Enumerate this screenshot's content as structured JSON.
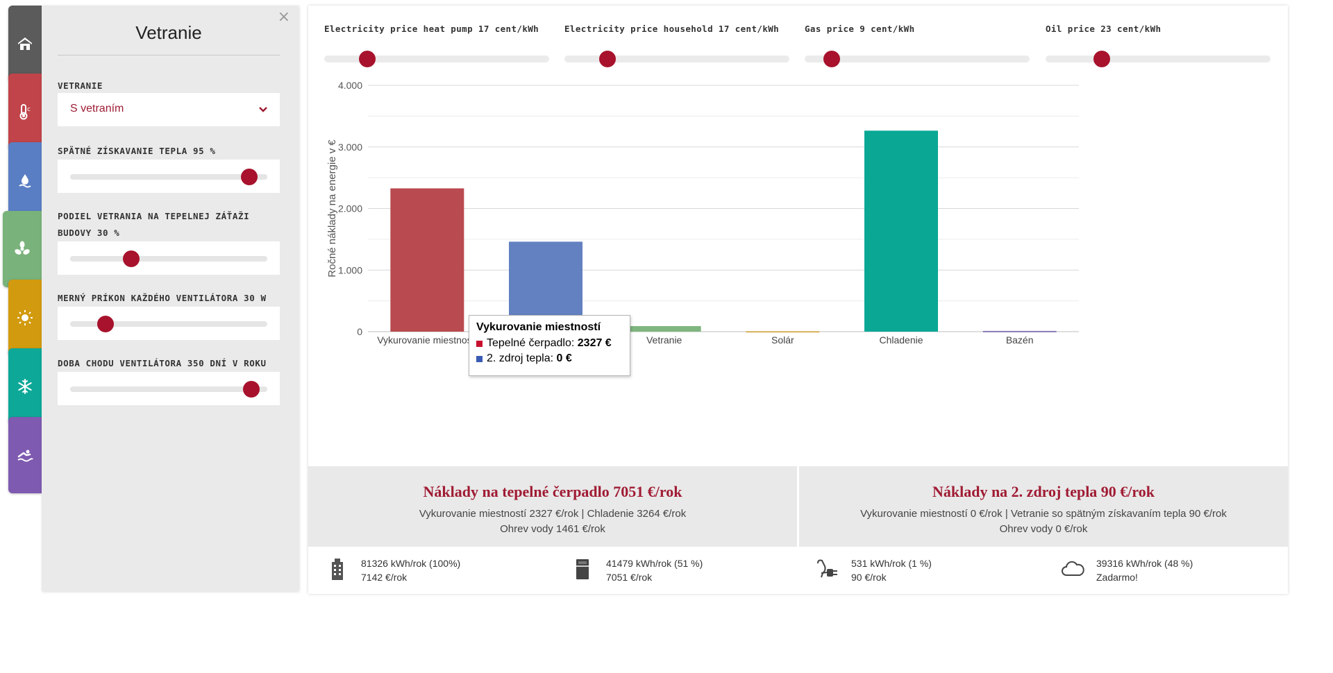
{
  "colors": {
    "accent": "#a8122c",
    "tab_building": "#5b5b5b",
    "tab_heating": "#c0444a",
    "tab_water": "#5a7ec4",
    "tab_ventilation": "#79b27a",
    "tab_solar": "#d29a0e",
    "tab_cooling": "#0ea898",
    "tab_pool": "#7e5ab0"
  },
  "tabs": [
    {
      "icon": "house-icon"
    },
    {
      "icon": "thermometer-icon"
    },
    {
      "icon": "water-drop-icon"
    },
    {
      "icon": "fan-icon"
    },
    {
      "icon": "sun-icon"
    },
    {
      "icon": "snowflake-icon"
    },
    {
      "icon": "swimmer-icon"
    }
  ],
  "panel": {
    "close": "×",
    "title": "Vetranie",
    "ventilation_label": "VETRANIE",
    "ventilation_value": "S vetraním",
    "heat_recovery_label": "SPÄTNÉ ZÍSKAVANIE TEPLA 95 %",
    "heat_recovery_level": 0.91,
    "ventilation_share_label": "PODIEL VETRANIA NA TEPELNEJ ZÁŤAŽI BUDOVY 30 %",
    "ventilation_share_level": 0.31,
    "fan_power_label": "MERNÝ PRÍKON KAŽDÉHO VENTILÁTORA 30 W",
    "fan_power_level": 0.18,
    "fan_runtime_label": "DOBA CHODU VENTILÁTORA 350 DNÍ V ROKU",
    "fan_runtime_level": 0.92
  },
  "prices": [
    {
      "label": "Electricity price heat pump 17 cent/kWh",
      "level": 0.19
    },
    {
      "label": "Electricity price household 17 cent/kWh",
      "level": 0.19
    },
    {
      "label": "Gas price 9 cent/kWh",
      "level": 0.12
    },
    {
      "label": "Oil price 23 cent/kWh",
      "level": 0.25
    }
  ],
  "chart_data": {
    "type": "bar",
    "ylabel": "Ročné náklady na energie v €",
    "ylim": [
      0,
      4000
    ],
    "yticks": [
      "0",
      "1.000",
      "2.000",
      "3.000",
      "4.000"
    ],
    "ytick_values": [
      0,
      1000,
      2000,
      3000,
      4000
    ],
    "minor_gridlines": true,
    "categories": [
      "Vykurovanie miestností",
      "Ohrev vody",
      "Vetranie",
      "Solár",
      "Chladenie",
      "Bazén"
    ],
    "values": [
      2327,
      1461,
      90,
      8,
      3264,
      12
    ],
    "colors": [
      "#b94a4f",
      "#6381c1",
      "#7fb67f",
      "#d6ad55",
      "#0aa795",
      "#8a7cb8"
    ]
  },
  "tooltip": {
    "title": "Vykurovanie miestností",
    "row1_label": "Tepelné čerpadlo: ",
    "row1_value": "2327 €",
    "row2_label": "2. zdroj tepla: ",
    "row2_value": "0 €",
    "row1_color": "#c8102e",
    "row2_color": "#3a5bb5"
  },
  "summary": {
    "left_title": "Náklady na tepelné čerpadlo 7051 €/rok",
    "left_line1": "Vykurovanie miestností 2327 €/rok | Chladenie 3264 €/rok",
    "left_line2": "Ohrev vody 1461 €/rok",
    "right_title": "Náklady na 2. zdroj tepla 90 €/rok",
    "right_line1": "Vykurovanie miestností 0 €/rok | Vetranie so spätným získavaním tepla 90 €/rok",
    "right_line2": "Ohrev vody 0 €/rok"
  },
  "stats": [
    {
      "icon": "building-icon",
      "line1": "81326 kWh/rok (100%)",
      "line2": "7142 €/rok"
    },
    {
      "icon": "heat-pump-icon",
      "line1": "41479 kWh/rok (51 %)",
      "line2": "7051 €/rok"
    },
    {
      "icon": "plug-icon",
      "line1": "531 kWh/rok (1 %)",
      "line2": "90 €/rok"
    },
    {
      "icon": "cloud-icon",
      "line1": "39316 kWh/rok (48 %)",
      "line2": "Zadarmo!"
    }
  ]
}
